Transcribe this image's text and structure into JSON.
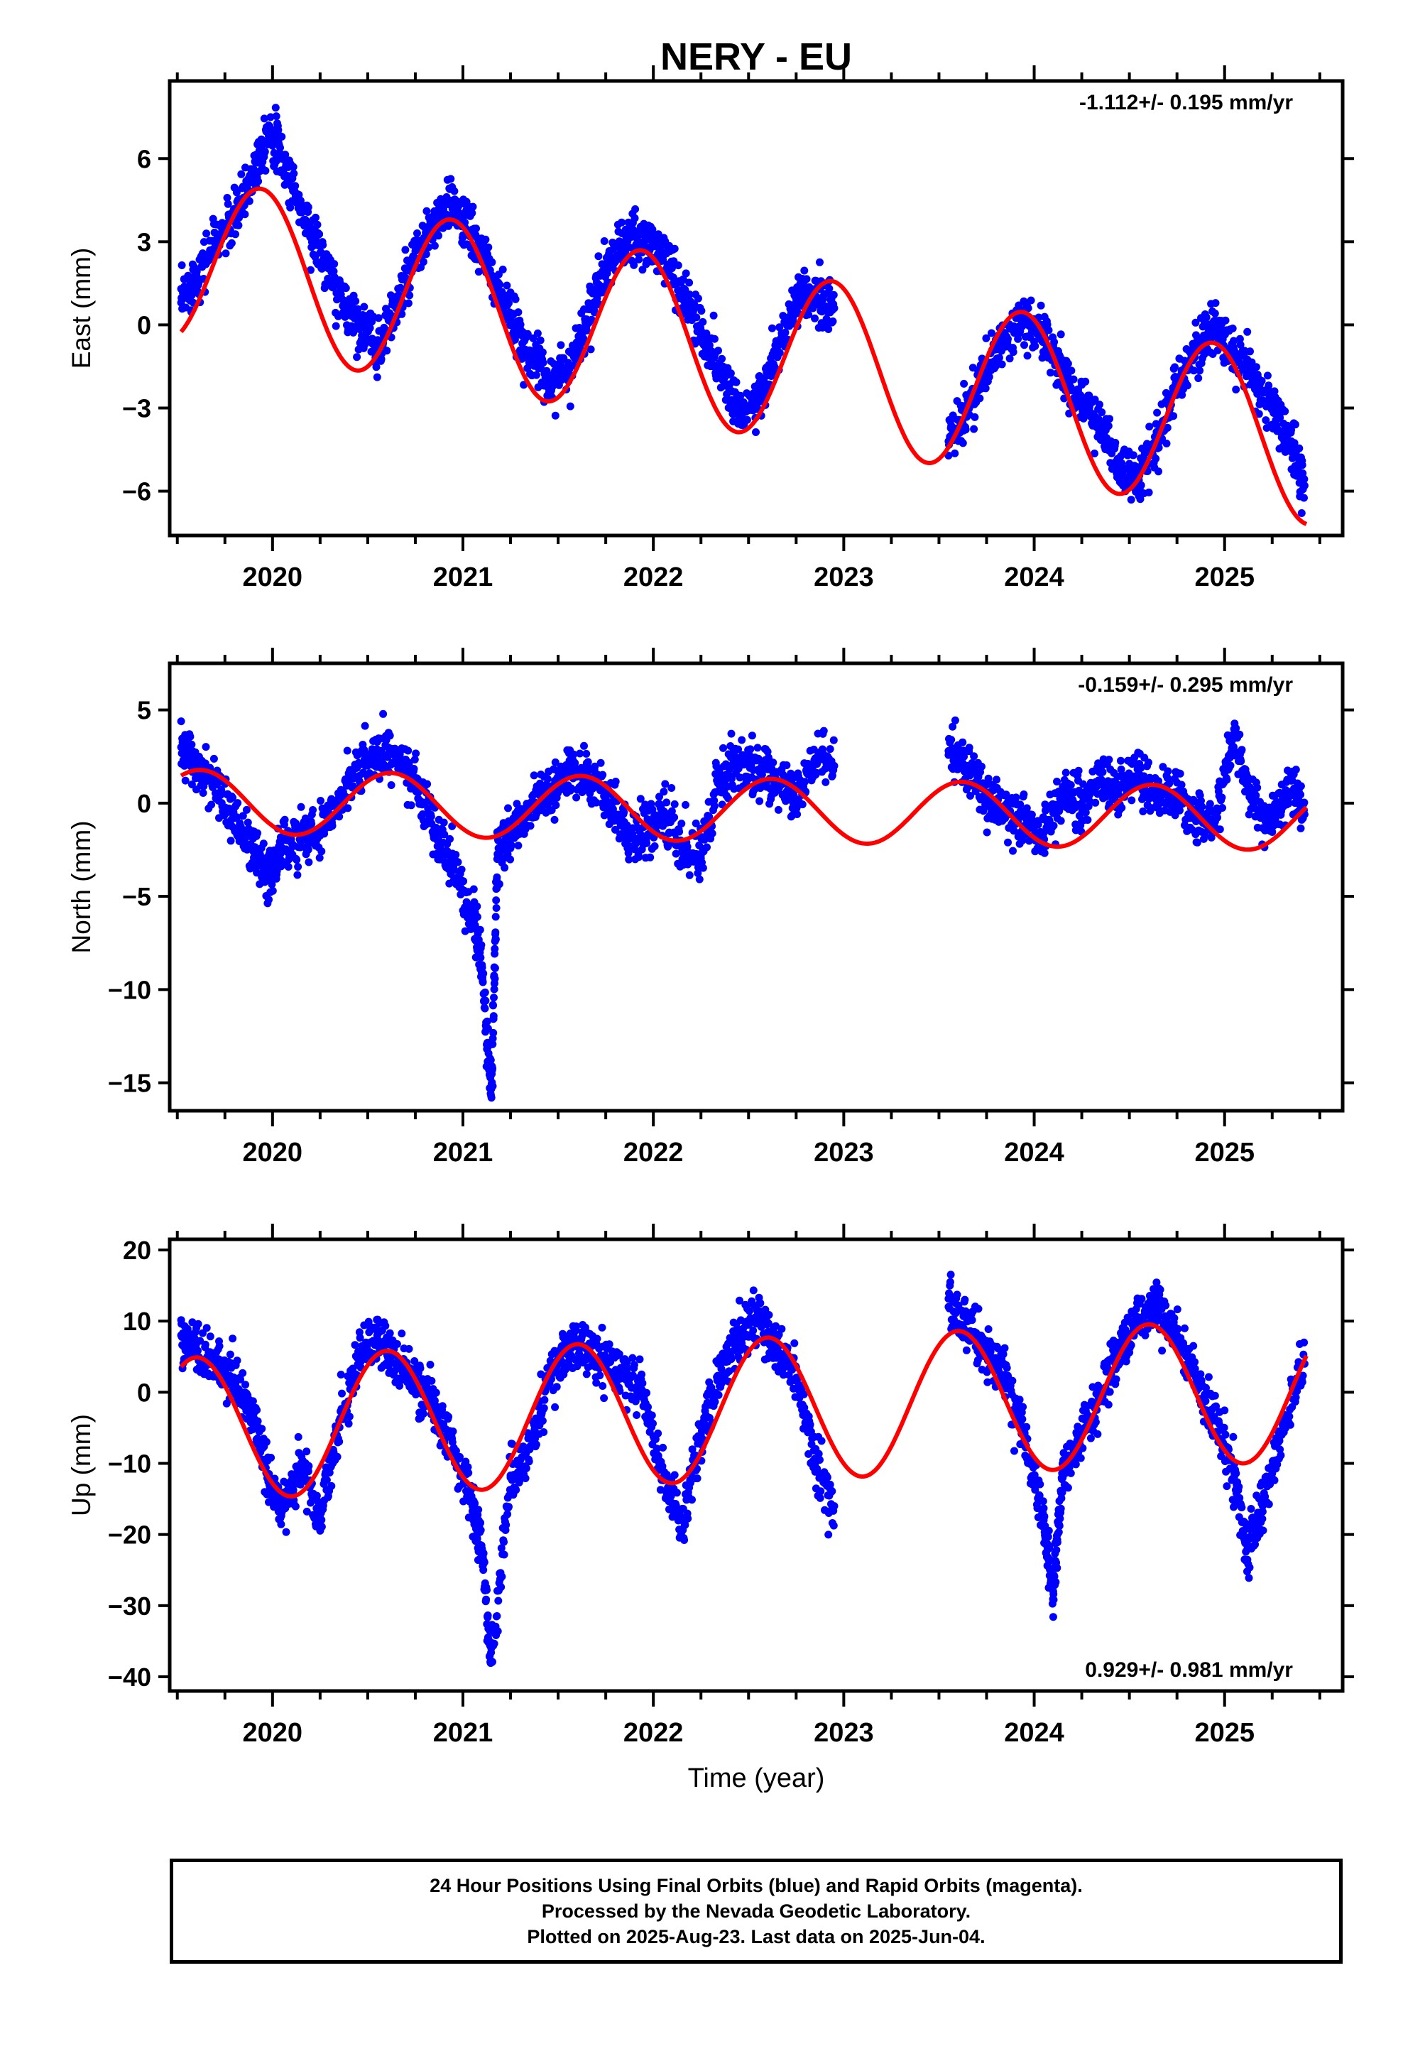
{
  "chart_data": {
    "type": "scatter",
    "title": "NERY - EU",
    "xlabel": "Time (year)",
    "x_ticks": [
      2020,
      2021,
      2022,
      2023,
      2024,
      2025
    ],
    "xlim": [
      2019.46,
      2025.62
    ],
    "colors": {
      "observations": "#0000ff",
      "model": "#ff0000",
      "frame": "#000000"
    },
    "panels": [
      {
        "name": "East",
        "ylabel": "East (mm)",
        "ylim": [
          -7.6,
          8.8
        ],
        "y_ticks": [
          -6,
          -3,
          0,
          3,
          6
        ],
        "y_tick_labels": [
          "−6",
          "−3",
          "0",
          "3",
          "6"
        ],
        "rate_label": "-1.112+/- 0.195 mm/yr",
        "rate_position": "top-right",
        "model": {
          "rate_mm_per_yr": -1.112,
          "annual_amplitude_mm": 3.0,
          "annual_phase_peak_year_fraction": 0.94,
          "offset_mm_at_2019_5": 2.4,
          "data_gaps": [
            [
              2022.97,
              2023.5
            ]
          ]
        },
        "observations": {
          "x": [
            2019.52,
            2019.6,
            2019.7,
            2019.8,
            2019.9,
            2019.98,
            2020.05,
            2020.15,
            2020.25,
            2020.35,
            2020.45,
            2020.55,
            2020.65,
            2020.75,
            2020.85,
            2020.95,
            2021.05,
            2021.15,
            2021.25,
            2021.35,
            2021.45,
            2021.55,
            2021.65,
            2021.75,
            2021.85,
            2021.95,
            2022.05,
            2022.15,
            2022.25,
            2022.35,
            2022.45,
            2022.55,
            2022.65,
            2022.75,
            2022.85,
            2022.95,
            2023.55,
            2023.65,
            2023.75,
            2023.85,
            2023.95,
            2024.05,
            2024.15,
            2024.25,
            2024.35,
            2024.45,
            2024.55,
            2024.65,
            2024.75,
            2024.85,
            2024.95,
            2025.05,
            2025.15,
            2025.25,
            2025.35,
            2025.42
          ],
          "y": [
            0.8,
            1.8,
            3.0,
            3.8,
            5.5,
            7.2,
            6.0,
            4.2,
            2.6,
            1.0,
            0.2,
            -0.8,
            0.6,
            2.4,
            3.6,
            4.4,
            3.2,
            1.8,
            0.2,
            -1.0,
            -2.0,
            -1.6,
            0.2,
            2.0,
            3.0,
            3.0,
            2.6,
            1.2,
            -0.2,
            -1.6,
            -3.0,
            -2.8,
            -1.0,
            0.8,
            1.0,
            0.6,
            -4.2,
            -3.0,
            -1.6,
            -0.6,
            0.2,
            -0.4,
            -1.8,
            -2.8,
            -3.6,
            -5.2,
            -5.6,
            -4.0,
            -2.2,
            -0.8,
            0.0,
            -1.0,
            -2.0,
            -3.0,
            -4.2,
            -5.8
          ]
        }
      },
      {
        "name": "North",
        "ylabel": "North (mm)",
        "ylim": [
          -16.5,
          7.5
        ],
        "y_ticks": [
          -15,
          -10,
          -5,
          0,
          5
        ],
        "y_tick_labels": [
          "−15",
          "−10",
          "−5",
          "0",
          "5"
        ],
        "rate_label": "-0.159+/- 0.295 mm/yr",
        "rate_position": "top-right",
        "model": {
          "rate_mm_per_yr": -0.159,
          "annual_amplitude_mm": 1.7,
          "annual_phase_peak_year_fraction": 0.62,
          "offset_mm_at_2019_5": 0.1,
          "data_gaps": [
            [
              2022.97,
              2023.5
            ]
          ]
        },
        "observations": {
          "x": [
            2019.52,
            2019.6,
            2019.7,
            2019.8,
            2019.9,
            2019.98,
            2020.05,
            2020.15,
            2020.25,
            2020.35,
            2020.45,
            2020.55,
            2020.65,
            2020.75,
            2020.85,
            2020.95,
            2021.05,
            2021.1,
            2021.15,
            2021.18,
            2021.25,
            2021.35,
            2021.45,
            2021.55,
            2021.65,
            2021.75,
            2021.85,
            2021.95,
            2022.05,
            2022.15,
            2022.25,
            2022.35,
            2022.45,
            2022.55,
            2022.65,
            2022.75,
            2022.85,
            2022.95,
            2023.55,
            2023.65,
            2023.75,
            2023.85,
            2023.95,
            2024.05,
            2024.15,
            2024.25,
            2024.35,
            2024.45,
            2024.55,
            2024.65,
            2024.75,
            2024.85,
            2024.95,
            2025.05,
            2025.15,
            2025.25,
            2025.35,
            2025.42
          ],
          "y": [
            3.0,
            2.0,
            1.0,
            -0.8,
            -2.6,
            -3.8,
            -2.4,
            -2.0,
            -1.4,
            0.4,
            2.0,
            2.6,
            2.4,
            1.2,
            -1.4,
            -3.4,
            -6.0,
            -8.8,
            -15.8,
            -3.0,
            -1.6,
            -0.4,
            0.6,
            1.8,
            1.6,
            0.2,
            -1.4,
            -1.8,
            -0.6,
            -2.4,
            -2.8,
            1.6,
            2.2,
            1.8,
            1.0,
            0.2,
            2.4,
            2.0,
            2.8,
            2.0,
            0.4,
            -0.4,
            -1.2,
            -1.6,
            0.6,
            0.0,
            1.0,
            0.8,
            1.6,
            0.4,
            0.6,
            -0.4,
            -1.0,
            3.6,
            0.0,
            -1.2,
            1.2,
            -0.6
          ]
        }
      },
      {
        "name": "Up",
        "ylabel": "Up (mm)",
        "ylim": [
          -42,
          21.5
        ],
        "y_ticks": [
          -40,
          -30,
          -20,
          -10,
          0,
          10,
          20
        ],
        "y_tick_labels": [
          "−40",
          "−30",
          "−20",
          "−10",
          "0",
          "10",
          "20"
        ],
        "rate_label": "0.929+/- 0.981 mm/yr",
        "rate_position": "bottom-right",
        "model": {
          "rate_mm_per_yr": 0.929,
          "annual_amplitude_mm": 10.0,
          "annual_phase_peak_year_fraction": 0.6,
          "offset_mm_at_2019_5": -5.2,
          "data_gaps": [
            [
              2022.97,
              2023.5
            ]
          ]
        },
        "observations": {
          "x": [
            2019.52,
            2019.6,
            2019.7,
            2019.8,
            2019.9,
            2019.98,
            2020.05,
            2020.15,
            2020.25,
            2020.35,
            2020.45,
            2020.55,
            2020.65,
            2020.75,
            2020.85,
            2020.95,
            2021.05,
            2021.1,
            2021.15,
            2021.25,
            2021.35,
            2021.45,
            2021.55,
            2021.65,
            2021.75,
            2021.85,
            2021.95,
            2022.05,
            2022.15,
            2022.25,
            2022.35,
            2022.45,
            2022.55,
            2022.65,
            2022.75,
            2022.85,
            2022.95,
            2023.55,
            2023.65,
            2023.75,
            2023.85,
            2023.95,
            2024.05,
            2024.1,
            2024.15,
            2024.25,
            2024.35,
            2024.45,
            2024.55,
            2024.65,
            2024.75,
            2024.85,
            2024.95,
            2025.05,
            2025.12,
            2025.2,
            2025.3,
            2025.42
          ],
          "y": [
            8,
            6,
            4,
            2,
            -4,
            -12,
            -16,
            -10,
            -18,
            -4,
            4,
            8,
            4,
            2,
            -2,
            -8,
            -16,
            -22,
            -38,
            -12,
            -8,
            2,
            6,
            6,
            4,
            2,
            0,
            -12,
            -18,
            -6,
            2,
            8,
            10,
            6,
            2,
            -10,
            -16,
            12,
            10,
            6,
            2,
            -6,
            -18,
            -28,
            -12,
            -6,
            0,
            6,
            10,
            12,
            8,
            2,
            -4,
            -12,
            -22,
            -16,
            -6,
            4
          ]
        }
      }
    ]
  },
  "footer": {
    "line1": "24 Hour Positions Using Final Orbits (blue) and Rapid Orbits (magenta).",
    "line2": "Processed by the Nevada Geodetic Laboratory.",
    "line3": "Plotted on 2025-Aug-23. Last data on 2025-Jun-04."
  }
}
